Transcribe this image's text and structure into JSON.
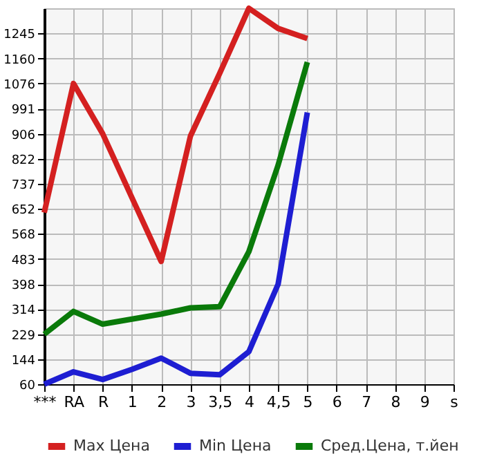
{
  "chart_data": {
    "type": "line",
    "categories": [
      "***",
      "RA",
      "R",
      "1",
      "2",
      "3",
      "3,5",
      "4",
      "4,5",
      "5",
      "6",
      "7",
      "8",
      "9",
      "s"
    ],
    "series": [
      {
        "name": "Max Цена",
        "color": "#d42020",
        "values": [
          640,
          1076,
          906,
          690,
          475,
          898,
          1110,
          1330,
          1262,
          1228,
          null,
          null,
          null,
          null,
          null
        ]
      },
      {
        "name": "Min Цена",
        "color": "#1e1ed2",
        "values": [
          60,
          102,
          76,
          110,
          148,
          97,
          92,
          170,
          398,
          978,
          null,
          null,
          null,
          null,
          null
        ]
      },
      {
        "name": "Сред.Цена, т.йен",
        "color": "#0a7a0a",
        "values": [
          229,
          306,
          263,
          280,
          297,
          318,
          322,
          508,
          800,
          1148,
          null,
          null,
          null,
          null,
          null
        ]
      }
    ],
    "ylim": [
      60,
      1330
    ],
    "yticks": [
      60,
      144,
      229,
      314,
      398,
      483,
      568,
      652,
      737,
      822,
      906,
      991,
      1076,
      1160,
      1245
    ],
    "grid": true,
    "legend": "bottom",
    "marker": "none",
    "line_style": "solid"
  }
}
